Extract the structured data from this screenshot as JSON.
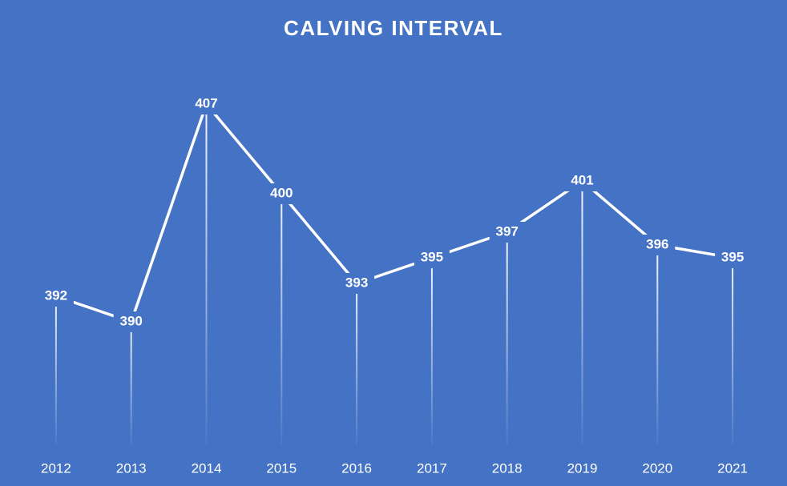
{
  "chart_data": {
    "type": "line",
    "title": "CALVING INTERVAL",
    "categories": [
      "2012",
      "2013",
      "2014",
      "2015",
      "2016",
      "2017",
      "2018",
      "2019",
      "2020",
      "2021"
    ],
    "values": [
      392,
      390,
      407,
      400,
      393,
      395,
      397,
      401,
      396,
      395
    ],
    "color": "#ffffff",
    "background": "#4472c4",
    "drop_lines": true,
    "ylim": [
      380,
      410
    ]
  }
}
